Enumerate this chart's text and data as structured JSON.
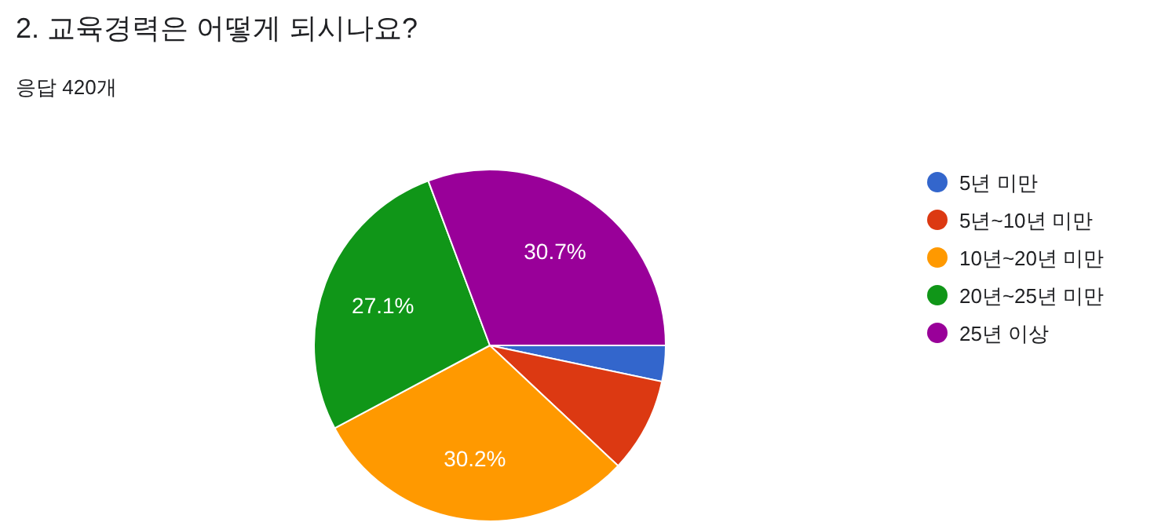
{
  "chart_data": {
    "type": "pie",
    "title": "2. 교육경력은 어떻게 되시나요?",
    "subtitle": "응답 420개",
    "categories": [
      "5년 미만",
      "5년~10년 미만",
      "10년~20년 미만",
      "20년~25년 미만",
      "25년 이상"
    ],
    "values": [
      3.3,
      8.7,
      30.2,
      27.1,
      30.7
    ],
    "colors": [
      "#3366cc",
      "#dc3912",
      "#ff9900",
      "#109618",
      "#990099"
    ],
    "value_labels": [
      null,
      null,
      "30.2%",
      "27.1%",
      "30.7%"
    ],
    "legend": "right"
  }
}
